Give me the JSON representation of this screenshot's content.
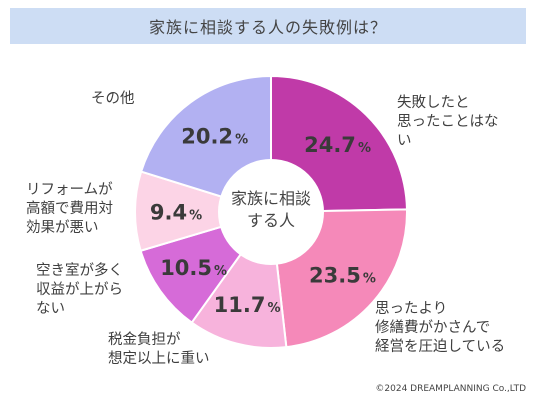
{
  "title": "家族に相談する人の失敗例は？",
  "center_label_lines": [
    "家族に相談",
    "する人"
  ],
  "credit": "©2024 DREAMPLANNING Co.,LTD",
  "chart_data": {
    "type": "pie",
    "value_suffix": "%",
    "slices": [
      {
        "label": "失敗したと思ったことはない",
        "value": 24.7,
        "color": "#c03aa8"
      },
      {
        "label": "思ったより修繕費がかさんで経営を圧迫している",
        "value": 23.5,
        "color": "#f589b9"
      },
      {
        "label": "税金負担が想定以上に重い",
        "value": 11.7,
        "color": "#f7b3dc"
      },
      {
        "label": "空き室が多く収益が上がらない",
        "value": 10.5,
        "color": "#d66bd8"
      },
      {
        "label": "リフォームが高額で費用対効果が悪い",
        "value": 9.4,
        "color": "#fcd4e6"
      },
      {
        "label": "その他",
        "value": 20.2,
        "color": "#b2b1f2"
      }
    ]
  },
  "outer_labels": [
    {
      "lines": [
        "失敗したと",
        "思ったことはな",
        "い"
      ]
    },
    {
      "lines": [
        "思ったより",
        "修繕費がかさんで",
        "経営を圧迫している"
      ]
    },
    {
      "lines": [
        "税金負担が",
        "想定以上に重い"
      ]
    },
    {
      "lines": [
        "空き室が多く",
        "収益が上がら",
        "ない"
      ]
    },
    {
      "lines": [
        "リフォームが",
        "高額で費用対",
        "効果が悪い"
      ]
    },
    {
      "lines": [
        "その他"
      ]
    }
  ]
}
